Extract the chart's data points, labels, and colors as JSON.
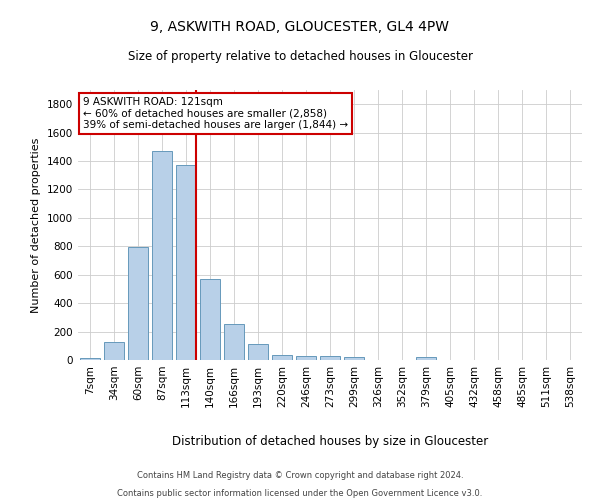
{
  "title1": "9, ASKWITH ROAD, GLOUCESTER, GL4 4PW",
  "title2": "Size of property relative to detached houses in Gloucester",
  "xlabel": "Distribution of detached houses by size in Gloucester",
  "ylabel": "Number of detached properties",
  "categories": [
    "7sqm",
    "34sqm",
    "60sqm",
    "87sqm",
    "113sqm",
    "140sqm",
    "166sqm",
    "193sqm",
    "220sqm",
    "246sqm",
    "273sqm",
    "299sqm",
    "326sqm",
    "352sqm",
    "379sqm",
    "405sqm",
    "432sqm",
    "458sqm",
    "485sqm",
    "511sqm",
    "538sqm"
  ],
  "values": [
    15,
    130,
    795,
    1470,
    1375,
    570,
    250,
    110,
    38,
    30,
    30,
    18,
    0,
    0,
    20,
    0,
    0,
    0,
    0,
    0,
    0
  ],
  "bar_color": "#b8d0e8",
  "bar_edge_color": "#6699bb",
  "vline_color": "#cc0000",
  "vline_index": 4,
  "annotation_text": "9 ASKWITH ROAD: 121sqm\n← 60% of detached houses are smaller (2,858)\n39% of semi-detached houses are larger (1,844) →",
  "annotation_box_edgecolor": "#cc0000",
  "ylim": [
    0,
    1900
  ],
  "yticks": [
    0,
    200,
    400,
    600,
    800,
    1000,
    1200,
    1400,
    1600,
    1800
  ],
  "footer1": "Contains HM Land Registry data © Crown copyright and database right 2024.",
  "footer2": "Contains public sector information licensed under the Open Government Licence v3.0.",
  "bg_color": "#ffffff",
  "grid_color": "#cccccc",
  "title1_fontsize": 10,
  "title2_fontsize": 8.5,
  "ylabel_fontsize": 8,
  "xlabel_fontsize": 8.5,
  "tick_fontsize": 7.5,
  "annotation_fontsize": 7.5,
  "footer_fontsize": 6.0
}
